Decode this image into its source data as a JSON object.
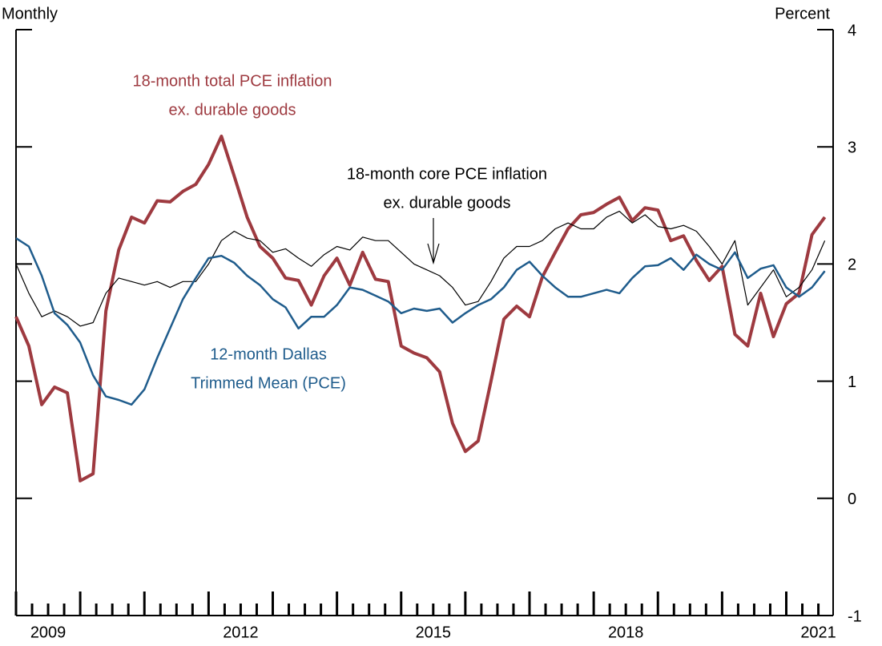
{
  "chart_data": {
    "type": "line",
    "left_label": "Monthly",
    "right_label": "Percent",
    "x": [
      2009.0,
      2009.2,
      2009.4,
      2009.6,
      2009.8,
      2010.0,
      2010.2,
      2010.4,
      2010.6,
      2010.8,
      2011.0,
      2011.2,
      2011.4,
      2011.6,
      2011.8,
      2012.0,
      2012.2,
      2012.4,
      2012.6,
      2012.8,
      2013.0,
      2013.2,
      2013.4,
      2013.6,
      2013.8,
      2014.0,
      2014.2,
      2014.4,
      2014.6,
      2014.8,
      2015.0,
      2015.2,
      2015.4,
      2015.6,
      2015.8,
      2016.0,
      2016.2,
      2016.4,
      2016.6,
      2016.8,
      2017.0,
      2017.2,
      2017.4,
      2017.6,
      2017.8,
      2018.0,
      2018.2,
      2018.4,
      2018.6,
      2018.8,
      2019.0,
      2019.2,
      2019.4,
      2019.6,
      2019.8,
      2020.0,
      2020.2,
      2020.4,
      2020.6,
      2020.8,
      2021.0,
      2021.2,
      2021.4,
      2021.6
    ],
    "series": [
      {
        "name_lines": [
          "18-month total PCE inflation",
          "ex. durable goods"
        ],
        "color": "#9e3a40",
        "width": 4,
        "values": [
          1.55,
          1.3,
          0.8,
          0.95,
          0.9,
          0.15,
          0.21,
          1.6,
          2.12,
          2.4,
          2.35,
          2.54,
          2.53,
          2.62,
          2.68,
          2.85,
          3.09,
          2.75,
          2.4,
          2.15,
          2.05,
          1.88,
          1.86,
          1.65,
          1.9,
          2.05,
          1.82,
          2.1,
          1.87,
          1.85,
          1.3,
          1.24,
          1.2,
          1.08,
          0.64,
          0.4,
          0.49,
          1.0,
          1.53,
          1.64,
          1.55,
          1.89,
          2.1,
          2.3,
          2.42,
          2.44,
          2.51,
          2.57,
          2.37,
          2.48,
          2.46,
          2.2,
          2.24,
          2.03,
          1.86,
          1.98,
          1.4,
          1.3,
          1.75,
          1.38,
          1.66,
          1.75,
          2.25,
          2.4
        ]
      },
      {
        "name_lines": [
          "18-month core PCE inflation",
          "ex. durable goods"
        ],
        "color": "#000000",
        "width": 1.2,
        "values": [
          2.0,
          1.75,
          1.55,
          1.6,
          1.55,
          1.47,
          1.5,
          1.75,
          1.88,
          1.85,
          1.82,
          1.85,
          1.8,
          1.85,
          1.85,
          2.0,
          2.2,
          2.28,
          2.22,
          2.2,
          2.1,
          2.13,
          2.05,
          1.98,
          2.08,
          2.15,
          2.12,
          2.23,
          2.2,
          2.2,
          2.1,
          2.0,
          1.95,
          1.9,
          1.8,
          1.65,
          1.68,
          1.85,
          2.05,
          2.15,
          2.15,
          2.2,
          2.3,
          2.35,
          2.3,
          2.3,
          2.4,
          2.45,
          2.35,
          2.42,
          2.32,
          2.3,
          2.33,
          2.28,
          2.15,
          2.0,
          2.2,
          1.65,
          1.8,
          1.95,
          1.72,
          1.8,
          1.95,
          2.2
        ]
      },
      {
        "name_lines": [
          "12-month Dallas",
          "Trimmed Mean (PCE)"
        ],
        "color": "#1f5c8c",
        "width": 2.5,
        "values": [
          2.22,
          2.15,
          1.9,
          1.58,
          1.48,
          1.33,
          1.05,
          0.87,
          0.84,
          0.8,
          0.93,
          1.2,
          1.45,
          1.7,
          1.88,
          2.05,
          2.07,
          2.01,
          1.9,
          1.82,
          1.7,
          1.63,
          1.45,
          1.55,
          1.55,
          1.65,
          1.8,
          1.78,
          1.73,
          1.68,
          1.58,
          1.62,
          1.6,
          1.62,
          1.5,
          1.58,
          1.65,
          1.7,
          1.8,
          1.95,
          2.02,
          1.9,
          1.8,
          1.72,
          1.72,
          1.75,
          1.78,
          1.75,
          1.88,
          1.98,
          1.99,
          2.05,
          1.95,
          2.08,
          2.0,
          1.95,
          2.1,
          1.88,
          1.96,
          1.99,
          1.8,
          1.72,
          1.8,
          1.94
        ]
      }
    ],
    "xlim": [
      2009.0,
      2021.73
    ],
    "xticks": [
      {
        "value": 2009.5,
        "label": "2009"
      },
      {
        "value": 2012.5,
        "label": "2012"
      },
      {
        "value": 2015.5,
        "label": "2015"
      },
      {
        "value": 2018.5,
        "label": "2018"
      },
      {
        "value": 2021.5,
        "label": "2021"
      }
    ],
    "xmajorticks": [
      2009,
      2010,
      2011,
      2012,
      2013,
      2014,
      2015,
      2016,
      2017,
      2018,
      2019,
      2020,
      2021
    ],
    "xminorticks": [
      2009.25,
      2009.5,
      2009.75,
      2010.25,
      2010.5,
      2010.75,
      2011.25,
      2011.5,
      2011.75,
      2012.25,
      2012.5,
      2012.75,
      2013.25,
      2013.5,
      2013.75,
      2014.25,
      2014.5,
      2014.75,
      2015.25,
      2015.5,
      2015.75,
      2016.25,
      2016.5,
      2016.75,
      2017.25,
      2017.5,
      2017.75,
      2018.25,
      2018.5,
      2018.75,
      2019.25,
      2019.5,
      2019.75,
      2020.25,
      2020.5,
      2020.75,
      2021.25,
      2021.5
    ],
    "ylim": [
      -1,
      4
    ],
    "yticks": [
      -1,
      0,
      1,
      2,
      3,
      4
    ]
  }
}
